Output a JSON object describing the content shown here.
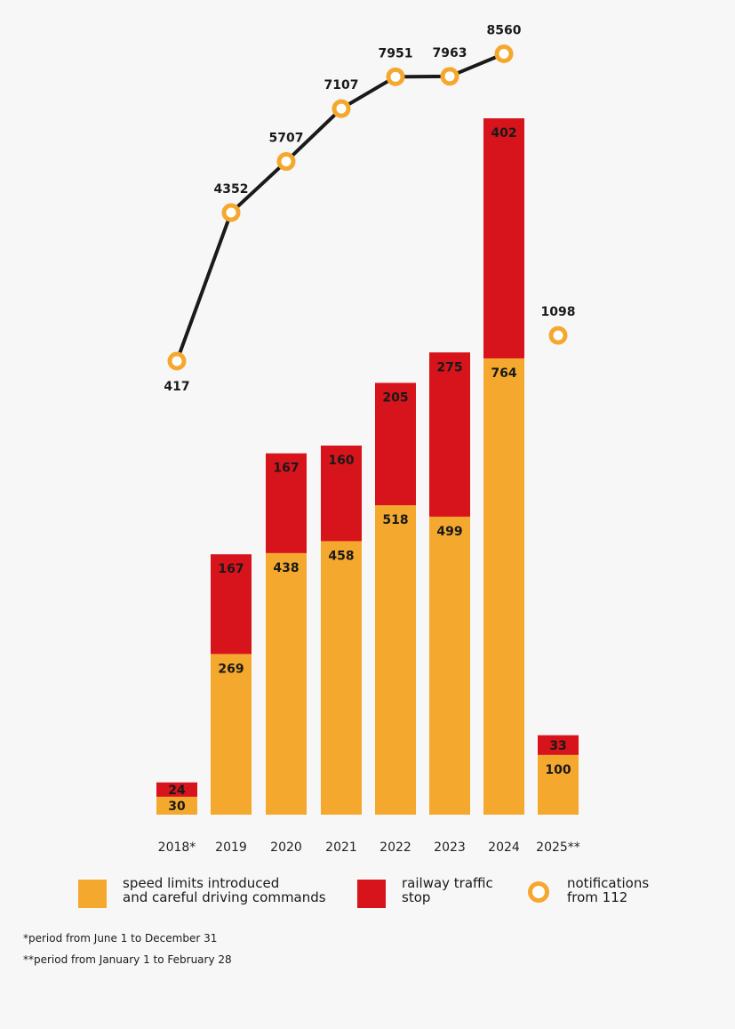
{
  "chart_data": {
    "type": "bar",
    "stacked": true,
    "categories": [
      "2018*",
      "2019",
      "2020",
      "2021",
      "2022",
      "2023",
      "2024",
      "2025**"
    ],
    "series": [
      {
        "name": "speed limits introduced\nand careful driving commands",
        "color": "#f5a82e",
        "values": [
          30,
          269,
          438,
          458,
          518,
          499,
          764,
          100
        ]
      },
      {
        "name": "railway traffic\nstop",
        "color": "#d7141b",
        "values": [
          24,
          167,
          167,
          160,
          205,
          275,
          402,
          33
        ]
      }
    ],
    "line_series": {
      "name": "notifications\nfrom 112",
      "color": "#f5a82e",
      "line_color": "#1a1a1a",
      "values": [
        417,
        4352,
        5707,
        7107,
        7951,
        7963,
        8560,
        1098
      ],
      "connected_points": 7
    },
    "footnotes": [
      "*period from June 1 to December 31",
      "**period from January 1 to February 28"
    ]
  },
  "legend": {
    "items": [
      {
        "label": "speed limits introduced\nand careful driving commands",
        "kind": "swatch",
        "color": "#f5a82e"
      },
      {
        "label": "railway traffic\nstop",
        "kind": "swatch",
        "color": "#d7141b"
      },
      {
        "label": "notifications\nfrom 112",
        "kind": "ring",
        "color": "#f5a82e"
      }
    ]
  }
}
